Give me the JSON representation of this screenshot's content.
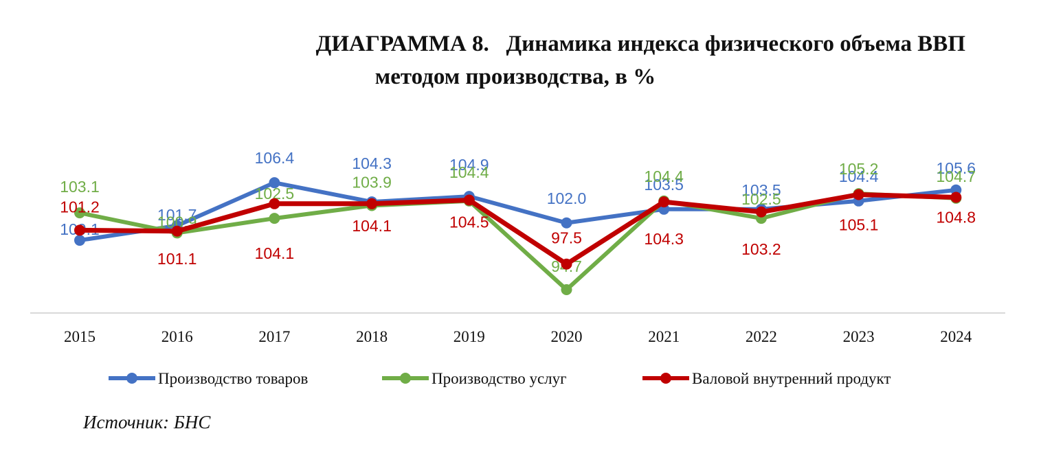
{
  "header": {
    "title_line1": "ДИАГРАММА 8.   Динамика индекса физического объема ВВП",
    "title_line2": "методом производства, в %"
  },
  "footer": {
    "source": "Источник: БНС"
  },
  "chart_data": {
    "type": "line",
    "title": "ДИАГРАММА 8.   Динамика индекса физического объема ВВП методом производства, в %",
    "categories": [
      "2015",
      "2016",
      "2017",
      "2018",
      "2019",
      "2020",
      "2021",
      "2022",
      "2023",
      "2024"
    ],
    "ylim": [
      94,
      107
    ],
    "grid": false,
    "legend_position": "bottom",
    "series": [
      {
        "name": "Производство товаров",
        "color": "#4472C4",
        "values": [
          100.1,
          101.7,
          106.4,
          104.3,
          104.9,
          102.0,
          103.5,
          103.5,
          104.4,
          105.6
        ],
        "labels": [
          "100.1",
          "101.7",
          "106.4",
          "104.3",
          "104.9",
          "102.0",
          "103.5",
          "103.5",
          "104.4",
          "105.6"
        ]
      },
      {
        "name": "Производство услуг",
        "color": "#70AD47",
        "values": [
          103.1,
          100.9,
          102.5,
          103.9,
          104.4,
          94.7,
          104.4,
          102.5,
          105.2,
          104.7
        ],
        "labels": [
          "103.1",
          "100.9",
          "102.5",
          "103.9",
          "104.4",
          "94.7",
          "104.4",
          "102.5",
          "105.2",
          "104.7"
        ]
      },
      {
        "name": "Валовой внутренний продукт",
        "color": "#C00000",
        "values": [
          101.2,
          101.1,
          104.1,
          104.1,
          104.5,
          97.5,
          104.3,
          103.2,
          105.1,
          104.8
        ],
        "labels": [
          "101.2",
          "101.1",
          "104.1",
          "104.1",
          "104.5",
          "97.5",
          "104.3",
          "103.2",
          "105.1",
          "104.8"
        ]
      }
    ]
  }
}
